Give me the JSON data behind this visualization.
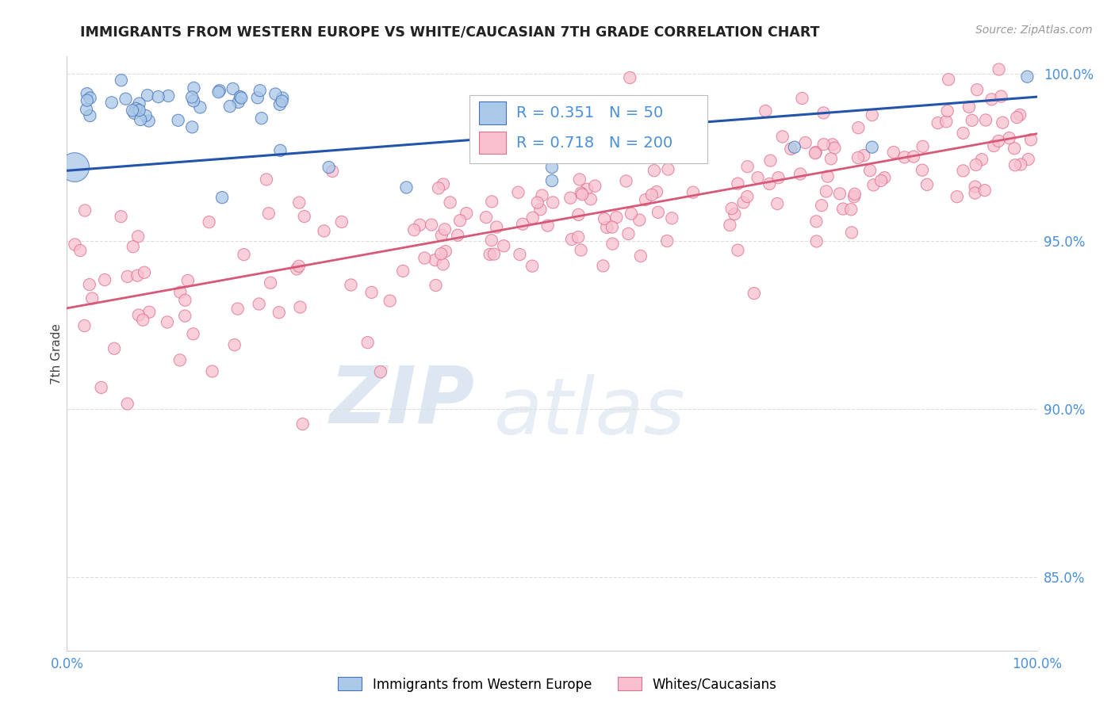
{
  "title": "IMMIGRANTS FROM WESTERN EUROPE VS WHITE/CAUCASIAN 7TH GRADE CORRELATION CHART",
  "source": "Source: ZipAtlas.com",
  "ylabel": "7th Grade",
  "legend_blue_label": "Immigrants from Western Europe",
  "legend_pink_label": "Whites/Caucasians",
  "R_blue": 0.351,
  "N_blue": 50,
  "R_pink": 0.718,
  "N_pink": 200,
  "blue_color": "#aac8e8",
  "blue_edge_color": "#4472b8",
  "blue_line_color": "#2255aa",
  "pink_color": "#f8c0ce",
  "pink_edge_color": "#e07090",
  "pink_line_color": "#d85878",
  "title_color": "#222222",
  "source_color": "#999999",
  "tick_color": "#4a90d9",
  "grid_color": "#dddddd",
  "xlim": [
    0.0,
    1.0
  ],
  "ylim": [
    0.828,
    1.005
  ],
  "yticks": [
    0.85,
    0.9,
    0.95,
    1.0
  ],
  "ytick_labels": [
    "85.0%",
    "90.0%",
    "95.0%",
    "100.0%"
  ],
  "blue_trend_y0": 0.971,
  "blue_trend_y1": 0.993,
  "pink_trend_y0": 0.93,
  "pink_trend_y1": 0.982,
  "watermark_zip": "ZIP",
  "watermark_atlas": "atlas"
}
